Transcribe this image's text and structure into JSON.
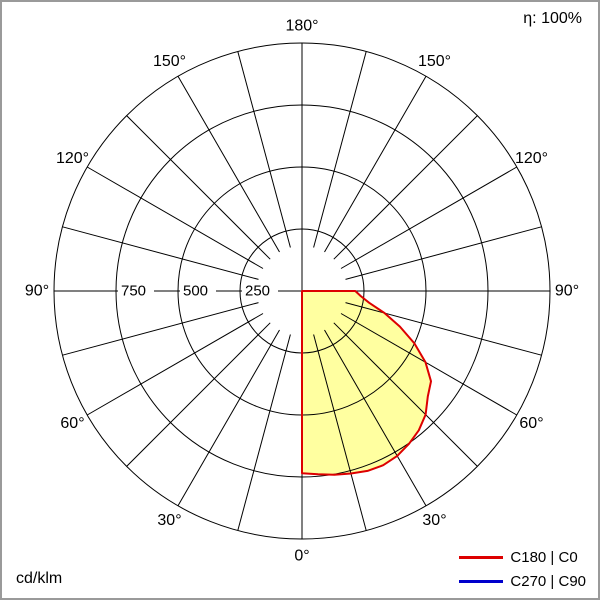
{
  "header": {
    "efficiency": "η: 100%"
  },
  "footer": {
    "unit": "cd/klm"
  },
  "legend": [
    {
      "label": "C180 | C0",
      "color": "#dd0000"
    },
    {
      "label": "C270 | C90",
      "color": "#0000cc"
    }
  ],
  "chart_data": {
    "type": "polar",
    "subtype": "luminous-intensity-distribution",
    "unit": "cd/klm",
    "efficiency_label": "η: 100%",
    "radial_ticks": [
      250,
      500,
      750
    ],
    "radial_max": 1000,
    "spoke_step_deg": 15,
    "angle_zero": "bottom",
    "angle_labels": [
      "0°",
      "30°",
      "60°",
      "90°",
      "120°",
      "150°",
      "180°"
    ],
    "series": [
      {
        "name": "C180 | C0",
        "color": "#dd0000",
        "fill": "#ffffa0",
        "points_gamma_value": [
          [
            -5,
            0
          ],
          [
            0,
            735
          ],
          [
            5,
            742
          ],
          [
            10,
            752
          ],
          [
            15,
            762
          ],
          [
            20,
            772
          ],
          [
            25,
            775
          ],
          [
            30,
            768
          ],
          [
            35,
            752
          ],
          [
            40,
            733
          ],
          [
            45,
            705
          ],
          [
            50,
            662
          ],
          [
            55,
            635
          ],
          [
            60,
            575
          ],
          [
            65,
            500
          ],
          [
            70,
            420
          ],
          [
            75,
            345
          ],
          [
            80,
            275
          ],
          [
            85,
            238
          ],
          [
            90,
            215
          ],
          [
            95,
            0
          ]
        ]
      },
      {
        "name": "C270 | C90",
        "color": "#0000cc",
        "fill": "none",
        "points_gamma_value": []
      }
    ]
  }
}
